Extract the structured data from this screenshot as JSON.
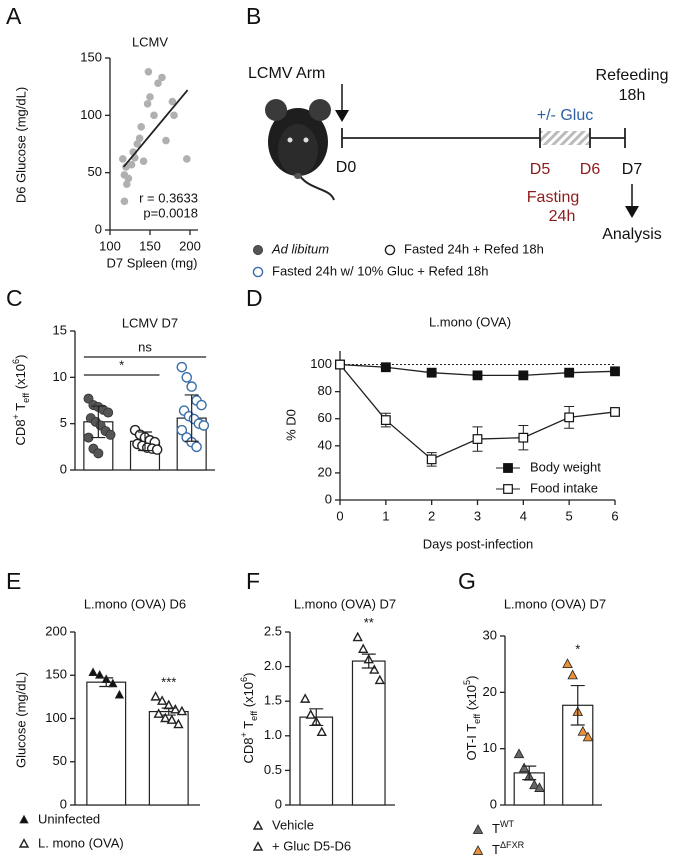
{
  "chart_data": [
    {
      "panel": "A",
      "type": "scatter",
      "title": "LCMV",
      "x_label": "D7 Spleen (mg)",
      "y_label": "D6 Glucose (mg/dL)",
      "x": [
        116,
        118,
        118,
        120,
        121,
        123,
        127,
        129,
        131,
        134,
        137,
        139,
        142,
        147,
        148,
        150,
        155,
        160,
        165,
        170,
        178,
        180,
        196
      ],
      "y": [
        62,
        48,
        25,
        55,
        40,
        45,
        57,
        68,
        63,
        75,
        80,
        90,
        60,
        110,
        138,
        116,
        100,
        128,
        133,
        78,
        112,
        100,
        62
      ],
      "color": "#b0b0b0",
      "fit": {
        "x": [
          117,
          197
        ],
        "y": [
          55,
          122
        ]
      },
      "annotations": [
        "r = 0.3633",
        "p=0.0018"
      ],
      "xlim": [
        100,
        210
      ],
      "xticks": [
        100,
        150,
        200
      ],
      "ylim": [
        0,
        150
      ],
      "yticks": [
        0,
        50,
        100,
        150
      ]
    },
    {
      "panel": "C",
      "type": "bars",
      "title": "LCMV D7",
      "y_label": [
        "CD8",
        "+",
        " T",
        "eff",
        " (x10",
        "6",
        ")"
      ],
      "categories": [
        null,
        null,
        null
      ],
      "marker": "circle",
      "groups": [
        {
          "name": "Ad libitum",
          "color": "#555555",
          "filled": true,
          "mean": 5.2,
          "error": 1.7,
          "points": [
            7.7,
            7.0,
            6.8,
            6.5,
            6.2,
            5.6,
            5.2,
            4.8,
            4.2,
            3.8,
            3.5,
            2.3,
            1.8
          ]
        },
        {
          "name": "Fasted 24h + Refed 18h",
          "color": "#222222",
          "filled": false,
          "mean": 3.1,
          "error": 1.0,
          "points": [
            4.3,
            3.8,
            3.5,
            3.2,
            3.0,
            2.8,
            2.6,
            2.4,
            2.3,
            2.2
          ]
        },
        {
          "name": "Fasted 24h w/ 10% Gluc + Refed 18h",
          "color": "#3a6ea8",
          "filled": false,
          "mean": 5.6,
          "error": 2.5,
          "points": [
            11.1,
            10.0,
            9.0,
            7.5,
            7.0,
            6.4,
            5.8,
            5.5,
            5.0,
            4.8,
            4.3,
            3.5,
            3.0,
            2.5
          ]
        }
      ],
      "significance": [
        {
          "label": "*",
          "groups": [
            0,
            1
          ]
        },
        {
          "label": "ns",
          "groups": [
            0,
            2
          ]
        }
      ],
      "ylim": [
        0,
        15
      ],
      "yticks": [
        0,
        5,
        10,
        15
      ]
    },
    {
      "panel": "D",
      "type": "line",
      "title": "L.mono (OVA)",
      "x_label": "Days post-infection",
      "y_label": "% D0",
      "x": [
        0,
        1,
        2,
        3,
        4,
        5,
        6
      ],
      "series": [
        {
          "name": "Body weight",
          "color": "#111111",
          "filled": true,
          "values": [
            100,
            98,
            94,
            92,
            92,
            94,
            95
          ],
          "errors": [
            0,
            1,
            1,
            1,
            1,
            1,
            1
          ]
        },
        {
          "name": "Food intake",
          "color": "#111111",
          "filled": false,
          "values": [
            100,
            59,
            30,
            45,
            46,
            61,
            65
          ],
          "errors": [
            0,
            5,
            5,
            9,
            9,
            8,
            2
          ]
        }
      ],
      "reference_line": 100,
      "xlim": [
        0,
        6
      ],
      "xticks": [
        0,
        1,
        2,
        3,
        4,
        5,
        6
      ],
      "ylim": [
        0,
        110
      ],
      "yticks": [
        0,
        20,
        40,
        60,
        80,
        100
      ]
    },
    {
      "panel": "E",
      "type": "bars",
      "title": "L.mono (OVA)   D6",
      "y_label": "Glucose (mg/dL)",
      "categories": [
        null,
        null
      ],
      "marker": "triangle",
      "groups": [
        {
          "name": "Uninfected",
          "color": "#111111",
          "filled": true,
          "mean": 142,
          "error": 5,
          "points": [
            153,
            150,
            145,
            140,
            127
          ]
        },
        {
          "name": "L. mono (OVA)",
          "color": "#111111",
          "filled": false,
          "mean": 108,
          "error": 4,
          "points": [
            125,
            120,
            115,
            110,
            108,
            105,
            100,
            98,
            93
          ]
        }
      ],
      "significance": [
        {
          "label": "***",
          "groups": [
            1
          ]
        }
      ],
      "ylim": [
        0,
        200
      ],
      "yticks": [
        0,
        50,
        100,
        150,
        200
      ]
    },
    {
      "panel": "F",
      "type": "bars",
      "title": "L.mono (OVA)  D7",
      "y_label": [
        "CD8",
        "+",
        " T",
        "eff",
        " (x10",
        "6",
        ")"
      ],
      "categories": [
        null,
        null
      ],
      "marker": "triangle",
      "groups": [
        {
          "name": "Vehicle",
          "color": "#111111",
          "filled": false,
          "mean": 1.27,
          "error": 0.12,
          "points": [
            1.53,
            1.3,
            1.2,
            1.05
          ]
        },
        {
          "name": "+ Gluc D5-D6",
          "color": "#3a6ea8",
          "filled": false,
          "mean": 2.08,
          "error": 0.1,
          "points": [
            2.42,
            2.25,
            2.1,
            1.95,
            1.8
          ]
        }
      ],
      "significance": [
        {
          "label": "**",
          "groups": [
            1
          ]
        }
      ],
      "ylim": [
        0,
        2.5
      ],
      "yticks": [
        0,
        0.5,
        {
          "value": 1,
          "label": "1.0"
        },
        1.5,
        {
          "value": 2,
          "label": "2.0"
        },
        2.5
      ]
    },
    {
      "panel": "G",
      "type": "bars",
      "title": "L.mono (OVA)  D7",
      "y_label": [
        "OT-I T",
        "eff",
        " (x10",
        "5",
        ")"
      ],
      "categories": [
        null,
        null
      ],
      "marker": "triangle",
      "groups": [
        {
          "name": [
            "T",
            "WT"
          ],
          "color": "#666666",
          "filled": true,
          "mean": 5.7,
          "error": 1.2,
          "points": [
            9,
            6.5,
            5,
            3.5,
            3
          ]
        },
        {
          "name": [
            "T",
            "ΔFXR"
          ],
          "color": "#e8903a",
          "filled": true,
          "mean": 17.7,
          "error": 3.5,
          "points": [
            25,
            23,
            16.5,
            13,
            12
          ]
        }
      ],
      "significance": [
        {
          "label": "*",
          "groups": [
            1
          ]
        }
      ],
      "ylim": [
        0,
        30
      ],
      "yticks": [
        0,
        10,
        20,
        30
      ]
    }
  ],
  "diagram": {
    "panel": "B",
    "infection": "LCMV Arm",
    "refeeding": [
      "Refeeding",
      "18h"
    ],
    "glucose": "+/- Gluc",
    "days": [
      "D0",
      "D5",
      "D6",
      "D7"
    ],
    "fasting": [
      "Fasting",
      "24h"
    ],
    "analysis": "Analysis"
  }
}
